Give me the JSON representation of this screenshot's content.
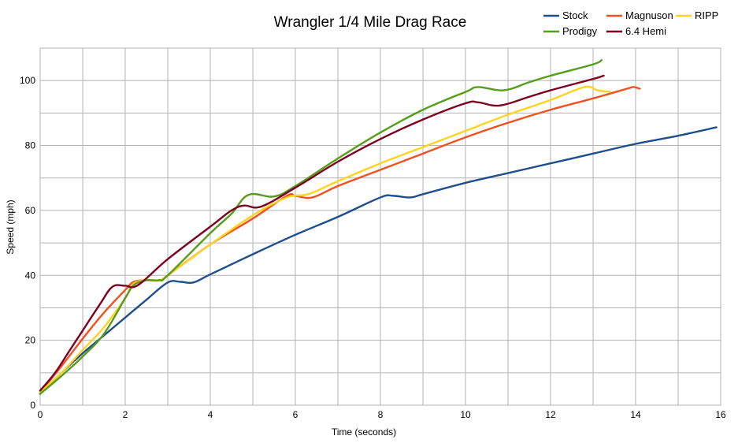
{
  "chart_data": {
    "type": "line",
    "title": "Wrangler 1/4 Mile  Drag Race",
    "xlabel": "Time (seconds)",
    "ylabel": "Speed (mph)",
    "xlim": [
      0,
      16
    ],
    "ylim": [
      0,
      110
    ],
    "xticks": [
      0,
      2,
      4,
      6,
      8,
      10,
      12,
      14,
      16
    ],
    "yticks": [
      0,
      20,
      40,
      60,
      80,
      100
    ],
    "grid": true,
    "grid_x_step": 1,
    "grid_y_step": 10,
    "legend_position": "top-right",
    "series": [
      {
        "name": "Stock",
        "color": "#1f4e8c",
        "points": [
          [
            0,
            3.5
          ],
          [
            0.5,
            10
          ],
          [
            1,
            16
          ],
          [
            1.5,
            21.5
          ],
          [
            2,
            27
          ],
          [
            2.5,
            32.5
          ],
          [
            3,
            37.8
          ],
          [
            3.3,
            38
          ],
          [
            3.6,
            37.8
          ],
          [
            4,
            40.3
          ],
          [
            5,
            46.5
          ],
          [
            6,
            52.5
          ],
          [
            7,
            58
          ],
          [
            8,
            64
          ],
          [
            8.3,
            64.5
          ],
          [
            8.7,
            64
          ],
          [
            9,
            65
          ],
          [
            10,
            68.5
          ],
          [
            11,
            71.5
          ],
          [
            12,
            74.5
          ],
          [
            13,
            77.5
          ],
          [
            14,
            80.5
          ],
          [
            15,
            83
          ],
          [
            15.9,
            85.6
          ]
        ]
      },
      {
        "name": "Magnuson",
        "color": "#f2501e",
        "points": [
          [
            0,
            4
          ],
          [
            0.5,
            12
          ],
          [
            1,
            20.5
          ],
          [
            1.5,
            28.5
          ],
          [
            2,
            35.5
          ],
          [
            2.2,
            38
          ],
          [
            2.5,
            38.5
          ],
          [
            2.8,
            38.5
          ],
          [
            3,
            40
          ],
          [
            4,
            49.5
          ],
          [
            5,
            57.5
          ],
          [
            5.8,
            64.5
          ],
          [
            6,
            64.5
          ],
          [
            6.4,
            64
          ],
          [
            7,
            67.5
          ],
          [
            8,
            72.5
          ],
          [
            9,
            77.5
          ],
          [
            10,
            82.5
          ],
          [
            11,
            87
          ],
          [
            12,
            91
          ],
          [
            13,
            94.5
          ],
          [
            13.8,
            97.5
          ],
          [
            13.95,
            98
          ],
          [
            14.1,
            97.5
          ]
        ]
      },
      {
        "name": "RIPP",
        "color": "#ffd320",
        "points": [
          [
            0,
            4
          ],
          [
            0.5,
            10
          ],
          [
            1,
            17
          ],
          [
            1.5,
            24
          ],
          [
            2,
            33
          ],
          [
            2.2,
            37.5
          ],
          [
            2.5,
            38.5
          ],
          [
            2.8,
            38.5
          ],
          [
            3,
            40
          ],
          [
            4,
            49.5
          ],
          [
            5,
            58.5
          ],
          [
            5.8,
            64
          ],
          [
            6.3,
            65
          ],
          [
            7,
            69
          ],
          [
            8,
            74.5
          ],
          [
            9,
            79.5
          ],
          [
            10,
            84.5
          ],
          [
            11,
            89.5
          ],
          [
            12,
            94
          ],
          [
            12.8,
            98
          ],
          [
            13.1,
            97
          ],
          [
            13.4,
            96.5
          ]
        ]
      },
      {
        "name": "Prodigy",
        "color": "#579d1c",
        "points": [
          [
            0,
            3.5
          ],
          [
            0.5,
            9
          ],
          [
            1,
            15
          ],
          [
            1.5,
            22
          ],
          [
            2,
            33
          ],
          [
            2.2,
            37
          ],
          [
            2.5,
            38.5
          ],
          [
            2.8,
            38.5
          ],
          [
            3,
            40
          ],
          [
            4,
            53
          ],
          [
            4.5,
            59
          ],
          [
            4.9,
            64.8
          ],
          [
            5.5,
            64.3
          ],
          [
            6,
            67.5
          ],
          [
            7,
            76
          ],
          [
            8,
            84
          ],
          [
            9,
            91
          ],
          [
            10,
            96.5
          ],
          [
            10.3,
            98
          ],
          [
            10.9,
            97
          ],
          [
            11.5,
            99.5
          ],
          [
            12,
            101.5
          ],
          [
            13,
            105
          ],
          [
            13.2,
            106.3
          ]
        ]
      },
      {
        "name": "6.4 Hemi",
        "color": "#7e0021",
        "points": [
          [
            0,
            4.5
          ],
          [
            0.35,
            10
          ],
          [
            0.7,
            17
          ],
          [
            1,
            23
          ],
          [
            1.4,
            31
          ],
          [
            1.7,
            36.5
          ],
          [
            2,
            36.8
          ],
          [
            2.3,
            37
          ],
          [
            3,
            45
          ],
          [
            4,
            55
          ],
          [
            4.5,
            60
          ],
          [
            4.8,
            61.5
          ],
          [
            5.2,
            61.2
          ],
          [
            6,
            67
          ],
          [
            7,
            75
          ],
          [
            8,
            82
          ],
          [
            9,
            88
          ],
          [
            10,
            93
          ],
          [
            10.3,
            93.3
          ],
          [
            10.8,
            92.3
          ],
          [
            11.5,
            95
          ],
          [
            12,
            97
          ],
          [
            13,
            100.5
          ],
          [
            13.25,
            101.5
          ]
        ]
      }
    ]
  }
}
